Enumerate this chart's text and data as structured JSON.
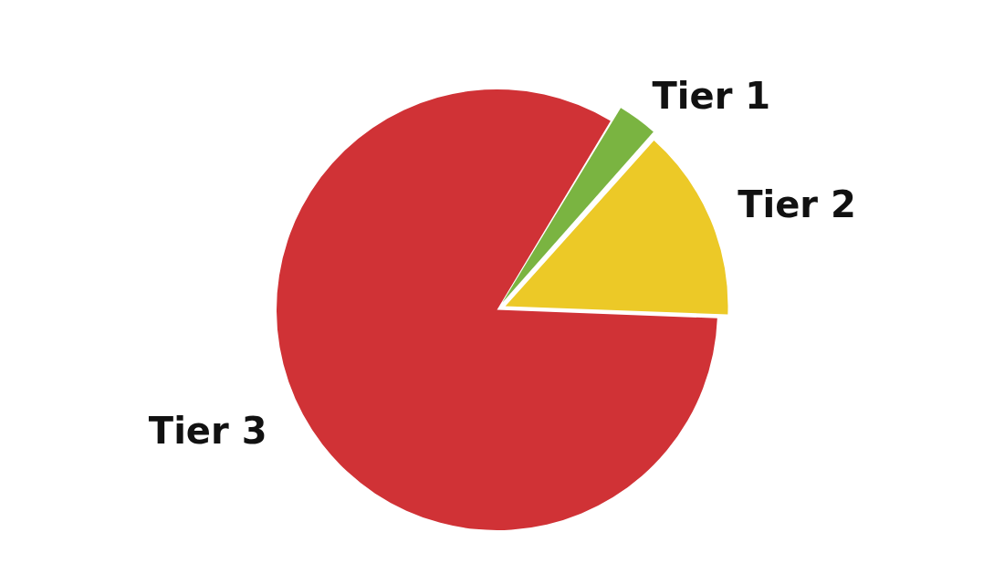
{
  "chart_data": {
    "type": "pie",
    "categories": [
      "Tier 1",
      "Tier 2",
      "Tier 3"
    ],
    "values": [
      3,
      14,
      83
    ],
    "colors": [
      "#7ab441",
      "#ecc927",
      "#d03236"
    ]
  }
}
